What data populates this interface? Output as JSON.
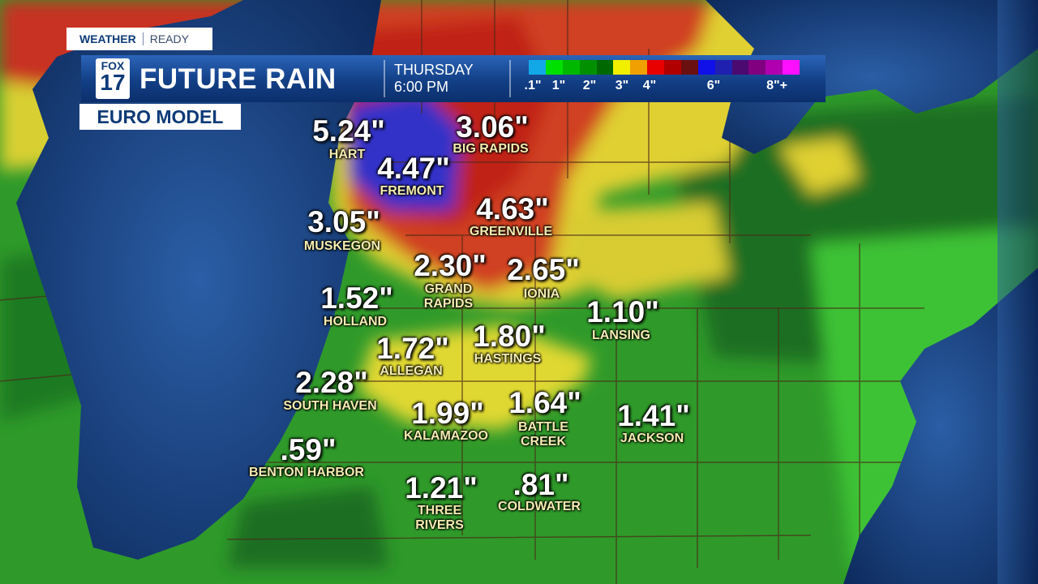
{
  "header": {
    "tag_left": "WEATHER",
    "tag_right": "READY",
    "logo_top": "FOX",
    "logo_bottom": "17",
    "title": "FUTURE RAIN",
    "day": "THURSDAY",
    "time": "6:00 PM",
    "model": "EURO MODEL"
  },
  "legend": {
    "colors": [
      "#12a8e8",
      "#00e000",
      "#00b800",
      "#009000",
      "#006800",
      "#f0f000",
      "#f0a000",
      "#e80000",
      "#b00000",
      "#6a1010",
      "#1010e8",
      "#2020b0",
      "#4a0a70",
      "#800080",
      "#b000b0",
      "#ff10ff"
    ],
    "labels": [
      ".1\"",
      "1\"",
      "2\"",
      "3\"",
      "4\"",
      "6\"",
      "8\"+"
    ]
  },
  "cities": [
    {
      "amount": "5.24\"",
      "name": [
        "HART"
      ]
    },
    {
      "amount": "3.06\"",
      "name": [
        "BIG RAPIDS"
      ]
    },
    {
      "amount": "4.47\"",
      "name": [
        "FREMONT"
      ]
    },
    {
      "amount": "4.63\"",
      "name": [
        "GREENVILLE"
      ]
    },
    {
      "amount": "3.05\"",
      "name": [
        "MUSKEGON"
      ]
    },
    {
      "amount": "2.30\"",
      "name": [
        "GRAND",
        "RAPIDS"
      ]
    },
    {
      "amount": "2.65\"",
      "name": [
        "IONIA"
      ]
    },
    {
      "amount": "1.52\"",
      "name": [
        "HOLLAND"
      ]
    },
    {
      "amount": "1.10\"",
      "name": [
        "LANSING"
      ]
    },
    {
      "amount": "1.80\"",
      "name": [
        "HASTINGS"
      ]
    },
    {
      "amount": "1.72\"",
      "name": [
        "ALLEGAN"
      ]
    },
    {
      "amount": "2.28\"",
      "name": [
        "SOUTH HAVEN"
      ]
    },
    {
      "amount": "1.99\"",
      "name": [
        "KALAMAZOO"
      ]
    },
    {
      "amount": "1.64\"",
      "name": [
        "BATTLE",
        "CREEK"
      ]
    },
    {
      "amount": "1.41\"",
      "name": [
        "JACKSON"
      ]
    },
    {
      "amount": ".59\"",
      "name": [
        "BENTON HARBOR"
      ]
    },
    {
      "amount": "1.21\"",
      "name": [
        "THREE",
        "RIVERS"
      ]
    },
    {
      "amount": ".81\"",
      "name": [
        "COLDWATER"
      ]
    }
  ]
}
